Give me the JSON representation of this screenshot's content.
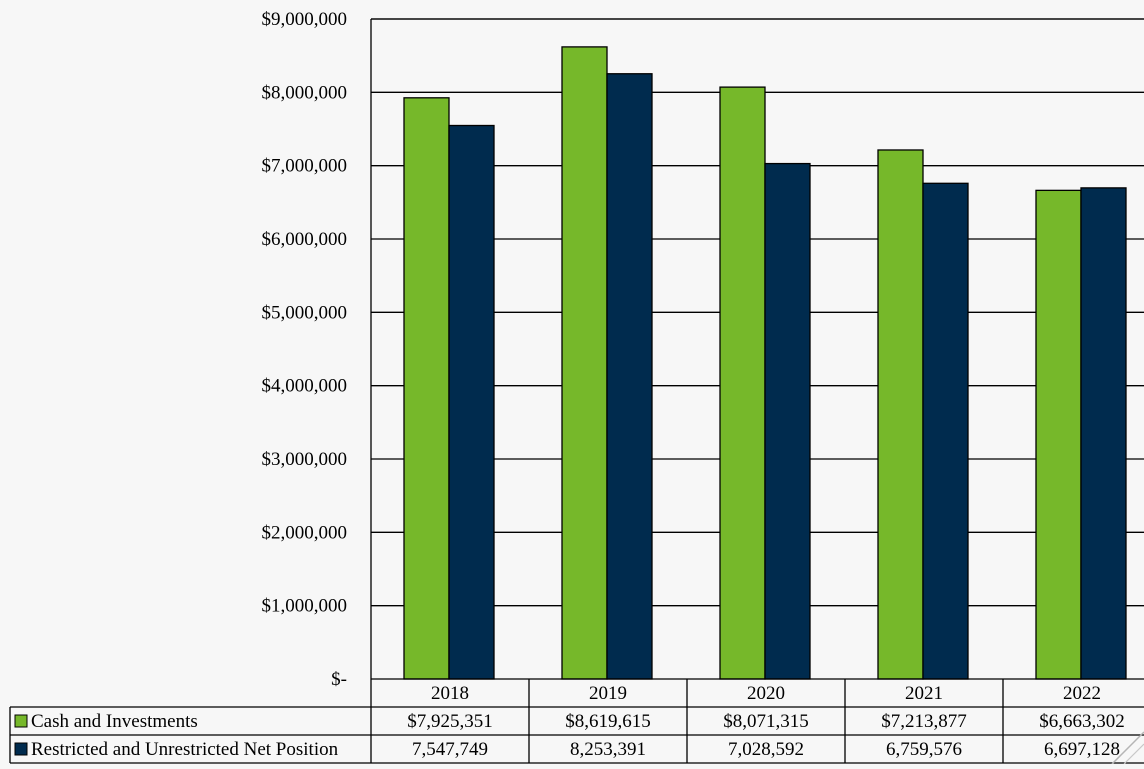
{
  "chart_data": {
    "type": "bar",
    "categories": [
      "2018",
      "2019",
      "2020",
      "2021",
      "2022"
    ],
    "series": [
      {
        "name": "Cash and Investments",
        "values": [
          7925351,
          8619615,
          8071315,
          7213877,
          6663302
        ],
        "labels": [
          "$7,925,351",
          "$8,619,615",
          "$8,071,315",
          "$7,213,877",
          "$6,663,302"
        ],
        "color": "#76b82a"
      },
      {
        "name": "Restricted and Unrestricted Net Position",
        "values": [
          7547749,
          8253391,
          7028592,
          6759576,
          6697128
        ],
        "labels": [
          "7,547,749",
          "8,253,391",
          "7,028,592",
          "6,759,576",
          "6,697,128"
        ],
        "color": "#002b4e"
      }
    ],
    "ylim": [
      0,
      9000000
    ],
    "yticks": [
      {
        "value": 0,
        "label": "$-"
      },
      {
        "value": 1000000,
        "label": "$1,000,000"
      },
      {
        "value": 2000000,
        "label": "$2,000,000"
      },
      {
        "value": 3000000,
        "label": "$3,000,000"
      },
      {
        "value": 4000000,
        "label": "$4,000,000"
      },
      {
        "value": 5000000,
        "label": "$5,000,000"
      },
      {
        "value": 6000000,
        "label": "$6,000,000"
      },
      {
        "value": 7000000,
        "label": "$7,000,000"
      },
      {
        "value": 8000000,
        "label": "$8,000,000"
      },
      {
        "value": 9000000,
        "label": "$9,000,000"
      }
    ],
    "grid": true,
    "legend": "data-table"
  }
}
